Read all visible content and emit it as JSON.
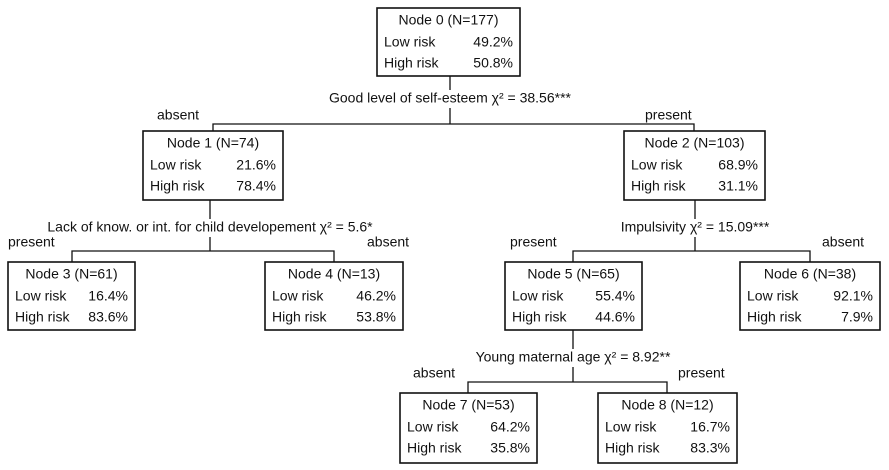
{
  "nodes": [
    {
      "title": "Node 0 (N=177)",
      "rows": [
        {
          "label": "Low risk",
          "value": "49.2%"
        },
        {
          "label": "High risk",
          "value": "50.8%"
        }
      ]
    },
    {
      "title": "Node 1 (N=74)",
      "rows": [
        {
          "label": "Low risk",
          "value": "21.6%"
        },
        {
          "label": "High risk",
          "value": "78.4%"
        }
      ]
    },
    {
      "title": "Node 2 (N=103)",
      "rows": [
        {
          "label": "Low risk",
          "value": "68.9%"
        },
        {
          "label": "High risk",
          "value": "31.1%"
        }
      ]
    },
    {
      "title": "Node 3 (N=61)",
      "rows": [
        {
          "label": "Low risk",
          "value": "16.4%"
        },
        {
          "label": "High risk",
          "value": "83.6%"
        }
      ]
    },
    {
      "title": "Node 4 (N=13)",
      "rows": [
        {
          "label": "Low risk",
          "value": "46.2%"
        },
        {
          "label": "High risk",
          "value": "53.8%"
        }
      ]
    },
    {
      "title": "Node 5 (N=65)",
      "rows": [
        {
          "label": "Low risk",
          "value": "55.4%"
        },
        {
          "label": "High risk",
          "value": "44.6%"
        }
      ]
    },
    {
      "title": "Node 6 (N=38)",
      "rows": [
        {
          "label": "Low risk",
          "value": "92.1%"
        },
        {
          "label": "High risk",
          "value": "7.9%"
        }
      ]
    },
    {
      "title": "Node 7 (N=53)",
      "rows": [
        {
          "label": "Low risk",
          "value": "64.2%"
        },
        {
          "label": "High risk",
          "value": "35.8%"
        }
      ]
    },
    {
      "title": "Node 8 (N=12)",
      "rows": [
        {
          "label": "Low risk",
          "value": "16.7%"
        },
        {
          "label": "High risk",
          "value": "83.3%"
        }
      ]
    }
  ],
  "splits": [
    {
      "text": "Good level of self-esteem χ² = 38.56***",
      "left": "absent",
      "right": "present"
    },
    {
      "text": "Lack of know. or int. for child developement χ² = 5.6*",
      "left": "present",
      "right": "absent"
    },
    {
      "text": "Impulsivity χ² = 15.09***",
      "left": "present",
      "right": "absent"
    },
    {
      "text": "Young maternal age χ² = 8.92**",
      "left": "absent",
      "right": "present"
    }
  ]
}
